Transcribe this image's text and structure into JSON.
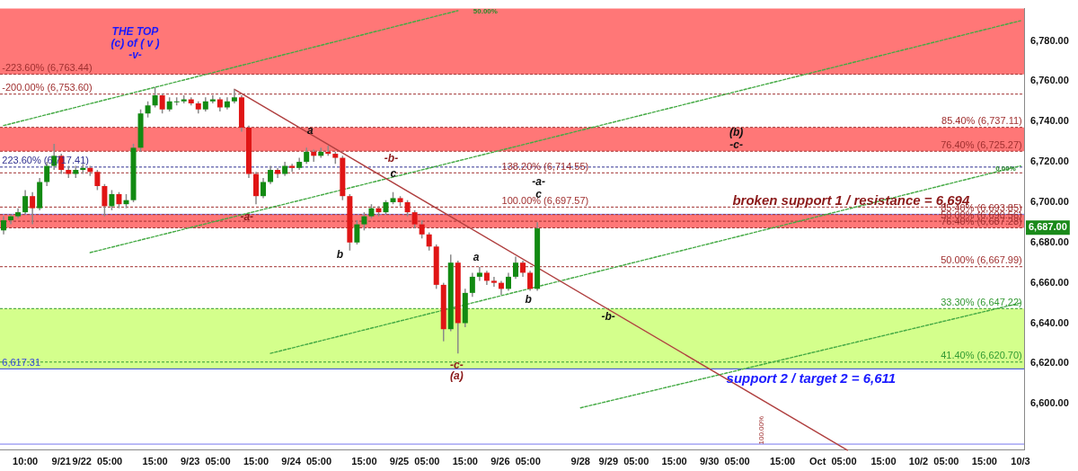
{
  "chart_data": {
    "type": "candlestick",
    "categories": [
      null,
      null,
      null,
      "10:00",
      null,
      null,
      null,
      null,
      "9/21",
      null,
      null,
      null,
      null,
      "9/22  05:00",
      null,
      null,
      null,
      null,
      null,
      null,
      null,
      "15:00",
      null,
      null,
      null,
      null,
      null,
      null,
      "9/23  05:00",
      null,
      null,
      null,
      null,
      null,
      null,
      "15:00",
      null,
      null,
      null,
      null,
      null,
      null,
      "9/24  05:00",
      null,
      null,
      null,
      null,
      null,
      null,
      null,
      "15:00",
      null,
      null,
      null,
      null,
      null,
      null,
      "9/25  05:00",
      null,
      null,
      null,
      null,
      null,
      null,
      "15:00",
      null,
      null,
      null,
      null,
      null,
      null,
      "9/26  05:00",
      null,
      null,
      null,
      null,
      null,
      null,
      null,
      null,
      "9/28",
      null,
      null,
      null,
      null,
      null,
      "9/29  05:00",
      null,
      null,
      null,
      null,
      null,
      null,
      "15:00",
      null,
      null,
      null,
      null,
      null,
      null,
      "9/30  05:00",
      null,
      null,
      null,
      null,
      null,
      null,
      null,
      "15:00",
      null,
      null,
      null,
      null,
      null,
      null,
      "Oct  05:00",
      null,
      null,
      null,
      null,
      null,
      null,
      "15:00",
      null,
      null,
      null,
      null,
      null,
      null,
      "10/2  05:00",
      null,
      null,
      null,
      null,
      null,
      null,
      "15:00",
      null,
      null,
      null,
      null,
      "10/3"
    ],
    "ohlc": [
      [
        6686,
        6693,
        6684,
        6691
      ],
      [
        6691,
        6694,
        6689,
        6693
      ],
      [
        6693,
        6697,
        6692,
        6695
      ],
      [
        6695,
        6706,
        6694,
        6703
      ],
      [
        6703,
        6705,
        6689,
        6697
      ],
      [
        6697,
        6712,
        6696,
        6710
      ],
      [
        6710,
        6720,
        6708,
        6718
      ],
      [
        6718,
        6729,
        6716,
        6723
      ],
      [
        6723,
        6724,
        6714,
        6716
      ],
      [
        6716,
        6718,
        6712,
        6714
      ],
      [
        6714,
        6718,
        6712,
        6716
      ],
      [
        6716,
        6719,
        6714,
        6717
      ],
      [
        6717,
        6718,
        6713,
        6715
      ],
      [
        6715,
        6716,
        6706,
        6708
      ],
      [
        6708,
        6709,
        6693,
        6698
      ],
      [
        6698,
        6706,
        6696,
        6704
      ],
      [
        6704,
        6705,
        6697,
        6699
      ],
      [
        6699,
        6704,
        6697,
        6701
      ],
      [
        6701,
        6729,
        6700,
        6727
      ],
      [
        6727,
        6746,
        6725,
        6744
      ],
      [
        6744,
        6750,
        6742,
        6748
      ],
      [
        6748,
        6757,
        6747,
        6753
      ],
      [
        6753,
        6754,
        6744,
        6746
      ],
      [
        6746,
        6752,
        6745,
        6750
      ],
      [
        6750,
        6752,
        6748,
        6750
      ],
      [
        6750,
        6753,
        6749,
        6751
      ],
      [
        6751,
        6752,
        6748,
        6749
      ],
      [
        6749,
        6750,
        6744,
        6746
      ],
      [
        6746,
        6752,
        6745,
        6750
      ],
      [
        6750,
        6753,
        6749,
        6751
      ],
      [
        6751,
        6752,
        6745,
        6747
      ],
      [
        6747,
        6752,
        6746,
        6750
      ],
      [
        6750,
        6756,
        6749,
        6752
      ],
      [
        6752,
        6753,
        6735,
        6737
      ],
      [
        6737,
        6738,
        6712,
        6714
      ],
      [
        6714,
        6715,
        6699,
        6703
      ],
      [
        6703,
        6712,
        6702,
        6710
      ],
      [
        6710,
        6718,
        6709,
        6716
      ],
      [
        6716,
        6717,
        6712,
        6714
      ],
      [
        6714,
        6720,
        6713,
        6718
      ],
      [
        6718,
        6719,
        6715,
        6717
      ],
      [
        6717,
        6722,
        6716,
        6720
      ],
      [
        6720,
        6727,
        6719,
        6725
      ],
      [
        6725,
        6726,
        6720,
        6723
      ],
      [
        6723,
        6727,
        6722,
        6725
      ],
      [
        6725,
        6728,
        6723,
        6724
      ],
      [
        6724,
        6725,
        6719,
        6722
      ],
      [
        6722,
        6723,
        6701,
        6703
      ],
      [
        6703,
        6704,
        6676,
        6680
      ],
      [
        6680,
        6691,
        6679,
        6689
      ],
      [
        6689,
        6695,
        6686,
        6693
      ],
      [
        6693,
        6699,
        6692,
        6697
      ],
      [
        6697,
        6698,
        6693,
        6695
      ],
      [
        6695,
        6701,
        6694,
        6700
      ],
      [
        6700,
        6705,
        6699,
        6702
      ],
      [
        6702,
        6703,
        6698,
        6700
      ],
      [
        6700,
        6701,
        6693,
        6695
      ],
      [
        6695,
        6696,
        6687,
        6689
      ],
      [
        6689,
        6691,
        6682,
        6684
      ],
      [
        6684,
        6685,
        6676,
        6678
      ],
      [
        6678,
        6679,
        6657,
        6659
      ],
      [
        6659,
        6660,
        6631,
        6637
      ],
      [
        6637,
        6674,
        6636,
        6670
      ],
      [
        6670,
        6671,
        6625,
        6640
      ],
      [
        6640,
        6657,
        6638,
        6655
      ],
      [
        6655,
        6665,
        6653,
        6663
      ],
      [
        6663,
        6668,
        6661,
        6665
      ],
      [
        6665,
        6666,
        6659,
        6661
      ],
      [
        6661,
        6663,
        6658,
        6660
      ],
      [
        6660,
        6661,
        6654,
        6657
      ],
      [
        6657,
        6665,
        6656,
        6663
      ],
      [
        6663,
        6673,
        6662,
        6670
      ],
      [
        6670,
        6671,
        6663,
        6665
      ],
      [
        6665,
        6666,
        6656,
        6657
      ],
      [
        6657,
        6690,
        6656,
        6687
      ],
      null,
      null,
      null,
      null,
      null,
      null,
      null,
      null,
      null,
      null,
      null,
      null,
      null,
      null,
      null,
      null,
      null,
      null,
      null,
      null,
      null,
      null,
      null,
      null,
      null,
      null,
      null,
      null,
      null,
      null,
      null,
      null,
      null,
      null,
      null,
      null,
      null,
      null,
      null,
      null,
      null,
      null,
      null,
      null,
      null,
      null,
      null,
      null,
      null,
      null,
      null,
      null,
      null,
      null,
      null,
      null,
      null,
      null,
      null,
      null,
      null,
      null,
      null,
      null,
      null,
      null,
      null
    ],
    "series": [
      {
        "type": "line",
        "color": "#b04040",
        "line_style": "solid",
        "values": [
          null,
          null,
          null,
          null,
          null,
          null,
          null,
          null,
          null,
          null,
          null,
          null,
          null,
          null,
          null,
          null,
          null,
          null,
          null,
          null,
          null,
          null,
          null,
          null,
          null,
          null,
          null,
          null,
          null,
          null,
          null,
          null,
          6756,
          null,
          null,
          null,
          null,
          null,
          null,
          null,
          null,
          null,
          null,
          null,
          null,
          null,
          null,
          null,
          null,
          null,
          null,
          null,
          null,
          null,
          null,
          null,
          null,
          null,
          null,
          null,
          null,
          null,
          null,
          null,
          null,
          null,
          null,
          null,
          null,
          null,
          null,
          null,
          null,
          null,
          null,
          null,
          null,
          null,
          null,
          null,
          null,
          null,
          null,
          null,
          null,
          null,
          null,
          null,
          null,
          null,
          null,
          null,
          null,
          null,
          null,
          null,
          null,
          null,
          null,
          null,
          null,
          null,
          null,
          null,
          null,
          null,
          null,
          null,
          null,
          null,
          null,
          null,
          null,
          null,
          null,
          null,
          null,
          6577,
          null,
          null,
          null,
          null,
          null,
          null,
          null,
          null,
          null,
          null,
          null,
          null,
          null,
          null,
          null,
          null,
          null,
          null,
          null,
          null,
          null,
          null,
          null,
          null
        ]
      },
      {
        "type": "line",
        "color": "#44aa44",
        "line_style": "dotted",
        "values": [
          6738,
          null,
          null,
          null,
          null,
          null,
          null,
          null,
          null,
          null,
          null,
          null,
          null,
          null,
          null,
          null,
          null,
          null,
          null,
          null,
          null,
          null,
          null,
          null,
          null,
          null,
          null,
          null,
          null,
          null,
          null,
          null,
          null,
          null,
          null,
          null,
          null,
          null,
          null,
          null,
          null,
          null,
          null,
          null,
          null,
          null,
          null,
          null,
          null,
          null,
          null,
          null,
          null,
          null,
          null,
          null,
          null,
          null,
          null,
          null,
          null,
          null,
          null,
          6795,
          null,
          null,
          null,
          null,
          null,
          null,
          null,
          null,
          null,
          null,
          null,
          null,
          null,
          null,
          null,
          null,
          null,
          null,
          null,
          null,
          null,
          null,
          null,
          null,
          null,
          null,
          null,
          null,
          null,
          null,
          null,
          null,
          null,
          null,
          null,
          null,
          null,
          null,
          null,
          null,
          null,
          null,
          null,
          null,
          null,
          null,
          null,
          null,
          null,
          null,
          null,
          null,
          null,
          null,
          null,
          null,
          null,
          null,
          null,
          null,
          null,
          null,
          null,
          null,
          null,
          null,
          null,
          null,
          null,
          null,
          null,
          null,
          null,
          null,
          null,
          null,
          null,
          null
        ]
      },
      {
        "type": "line",
        "color": "#44aa44",
        "line_style": "dotted",
        "values": [
          null,
          null,
          null,
          null,
          null,
          null,
          null,
          null,
          null,
          null,
          null,
          null,
          6675,
          null,
          null,
          null,
          null,
          null,
          null,
          null,
          null,
          null,
          null,
          null,
          null,
          null,
          null,
          null,
          null,
          null,
          null,
          null,
          null,
          null,
          null,
          null,
          null,
          null,
          null,
          null,
          null,
          null,
          null,
          null,
          null,
          null,
          null,
          null,
          null,
          null,
          null,
          null,
          null,
          null,
          null,
          null,
          null,
          null,
          null,
          null,
          null,
          null,
          null,
          null,
          null,
          null,
          null,
          null,
          null,
          null,
          null,
          null,
          null,
          null,
          null,
          null,
          null,
          null,
          null,
          null,
          null,
          null,
          null,
          null,
          null,
          null,
          null,
          null,
          null,
          null,
          null,
          null,
          null,
          null,
          null,
          null,
          null,
          null,
          null,
          null,
          null,
          null,
          null,
          null,
          null,
          null,
          null,
          null,
          null,
          null,
          null,
          null,
          null,
          null,
          null,
          null,
          null,
          null,
          null,
          null,
          null,
          null,
          null,
          null,
          null,
          null,
          null,
          null,
          null,
          null,
          null,
          null,
          null,
          null,
          null,
          null,
          null,
          null,
          null,
          null,
          null,
          6790
        ]
      },
      {
        "type": "line",
        "color": "#44aa44",
        "line_style": "dotted",
        "values": [
          null,
          null,
          null,
          null,
          null,
          null,
          null,
          null,
          null,
          null,
          null,
          null,
          null,
          null,
          null,
          null,
          null,
          null,
          null,
          null,
          null,
          null,
          null,
          null,
          null,
          null,
          null,
          null,
          null,
          null,
          null,
          null,
          null,
          null,
          null,
          null,
          null,
          6625,
          null,
          null,
          null,
          null,
          null,
          null,
          null,
          null,
          null,
          null,
          null,
          null,
          null,
          null,
          null,
          null,
          null,
          null,
          null,
          null,
          null,
          null,
          null,
          null,
          null,
          null,
          null,
          null,
          null,
          null,
          null,
          null,
          null,
          null,
          null,
          null,
          null,
          null,
          null,
          null,
          null,
          null,
          null,
          null,
          null,
          null,
          null,
          null,
          null,
          null,
          null,
          null,
          null,
          null,
          null,
          null,
          null,
          null,
          null,
          null,
          null,
          null,
          null,
          null,
          null,
          null,
          null,
          null,
          null,
          null,
          null,
          null,
          null,
          null,
          null,
          null,
          null,
          null,
          null,
          null,
          null,
          null,
          null,
          null,
          null,
          null,
          null,
          null,
          null,
          null,
          null,
          null,
          null,
          null,
          null,
          null,
          null,
          null,
          null,
          null,
          null,
          null,
          null,
          6718
        ]
      },
      {
        "type": "line",
        "color": "#44aa44",
        "line_style": "dotted",
        "values": [
          null,
          null,
          null,
          null,
          null,
          null,
          null,
          null,
          null,
          null,
          null,
          null,
          null,
          null,
          null,
          null,
          null,
          null,
          null,
          null,
          null,
          null,
          null,
          null,
          null,
          null,
          null,
          null,
          null,
          null,
          null,
          null,
          null,
          null,
          null,
          null,
          null,
          null,
          null,
          null,
          null,
          null,
          null,
          null,
          null,
          null,
          null,
          null,
          null,
          null,
          null,
          null,
          null,
          null,
          null,
          null,
          null,
          null,
          null,
          null,
          null,
          null,
          null,
          null,
          null,
          null,
          null,
          null,
          null,
          null,
          null,
          null,
          null,
          null,
          null,
          null,
          null,
          null,
          null,
          null,
          6598,
          null,
          null,
          null,
          null,
          null,
          null,
          null,
          null,
          null,
          null,
          null,
          null,
          null,
          null,
          null,
          null,
          null,
          null,
          null,
          null,
          null,
          null,
          null,
          null,
          null,
          null,
          null,
          null,
          null,
          null,
          null,
          null,
          null,
          null,
          null,
          null,
          null,
          null,
          null,
          null,
          null,
          null,
          null,
          null,
          null,
          null,
          null,
          null,
          null,
          null,
          null,
          null,
          null,
          null,
          null,
          null,
          null,
          null,
          null,
          null,
          6650
        ]
      }
    ],
    "ylim": [
      6577,
      6796
    ],
    "yticks": [
      {
        "value": 6600,
        "label": "6,600.00"
      },
      {
        "value": 6620,
        "label": "6,620.00"
      },
      {
        "value": 6640,
        "label": "6,640.00"
      },
      {
        "value": 6660,
        "label": "6,660.00"
      },
      {
        "value": 6680,
        "label": "6,680.00"
      },
      {
        "value": 6700,
        "label": "6,700.00"
      },
      {
        "value": 6720,
        "label": "6,720.00"
      },
      {
        "value": 6740,
        "label": "6,740.00"
      },
      {
        "value": 6760,
        "label": "6,760.00"
      },
      {
        "value": 6780,
        "label": "6,780.00"
      }
    ],
    "bands": [
      {
        "axis": "y",
        "from": 6763.44,
        "to": 6796,
        "color": "#ff7777"
      },
      {
        "axis": "y",
        "from": 6725.27,
        "to": 6737.11,
        "color": "#ff7777"
      },
      {
        "axis": "y",
        "from": 6687.28,
        "to": 6694,
        "color": "#ff7777"
      },
      {
        "axis": "y",
        "from": 6617.31,
        "to": 6647.22,
        "color": "#d4ff8c"
      }
    ],
    "ref_lines": [
      {
        "axis": "y",
        "value": 6763.44,
        "color": "#a03030",
        "line_style": "dotted"
      },
      {
        "axis": "y",
        "value": 6753.6,
        "color": "#a03030",
        "line_style": "dotted"
      },
      {
        "axis": "y",
        "value": 6737.11,
        "color": "#a03030",
        "line_style": "dotted"
      },
      {
        "axis": "y",
        "value": 6725.27,
        "color": "#a03030",
        "line_style": "dotted"
      },
      {
        "axis": "y",
        "value": 6717.41,
        "color": "#303090",
        "line_style": "dotted"
      },
      {
        "axis": "y",
        "value": 6714.55,
        "color": "#a03030",
        "line_style": "dotted"
      },
      {
        "axis": "y",
        "value": 6697.57,
        "color": "#a03030",
        "line_style": "dotted"
      },
      {
        "axis": "y",
        "value": 6694,
        "color": "#7777ee",
        "line_style": "solid"
      },
      {
        "axis": "y",
        "value": 6693.85,
        "color": "#a03030",
        "line_style": "dotted"
      },
      {
        "axis": "y",
        "value": 6690.56,
        "color": "#a03030",
        "line_style": "dotted"
      },
      {
        "axis": "y",
        "value": 6687.28,
        "color": "#a03030",
        "line_style": "dotted"
      },
      {
        "axis": "y",
        "value": 6667.99,
        "color": "#a03030",
        "line_style": "dotted"
      },
      {
        "axis": "y",
        "value": 6647.22,
        "color": "#339933",
        "line_style": "dotted"
      },
      {
        "axis": "y",
        "value": 6620.7,
        "color": "#339933",
        "line_style": "dotted"
      },
      {
        "axis": "y",
        "value": 6617.31,
        "color": "#3344dd",
        "line_style": "solid"
      },
      {
        "axis": "y",
        "value": 6580,
        "color": "#7777ee",
        "line_style": "solid"
      }
    ],
    "annotations": [
      {
        "text": "-223.60% (6,763.44)",
        "y": 6763.44
      },
      {
        "text": "-200.00% (6,753.60)",
        "y": 6753.6
      },
      {
        "text": "223.60% (6,717.41)",
        "y": 6717.41
      },
      {
        "text": "6,617.31",
        "y": 6617.31
      },
      {
        "text": "138.20% (6,714.55)",
        "y": 6714.55
      },
      {
        "text": "100.00% (6,697.57)",
        "y": 6697.57
      },
      {
        "text": "85.40% (6,737.11)",
        "y": 6737.11
      },
      {
        "text": "76.40% (6,725.27)",
        "y": 6725.27
      },
      {
        "text": "85.40% (6,693.85)",
        "y": 6693.85
      },
      {
        "text": "50.00% (6,690.56)",
        "y": 6690.56
      },
      {
        "text": "76.40% (6,687.28)",
        "y": 6687.28
      },
      {
        "text": "50.00% (6,667.99)",
        "y": 6667.99
      },
      {
        "text": "33.30% (6,647.22)",
        "y": 6647.22
      },
      {
        "text": "41.40% (6,620.70)",
        "y": 6620.7
      },
      "THE TOP",
      "(c) of ( v )",
      "-v-",
      "a",
      "-b-",
      "c",
      "-a-",
      "b",
      "-a-",
      "c",
      "a",
      "b",
      "-b-",
      "-c-",
      "(a)",
      "(b)",
      "-c-",
      "50.00%",
      "0.00%",
      "broken support 1 / resistance = 6,694",
      "support 2 / target 2 = 6,611",
      "6,687.00",
      "100.00%"
    ],
    "grid": false,
    "legend": false
  }
}
